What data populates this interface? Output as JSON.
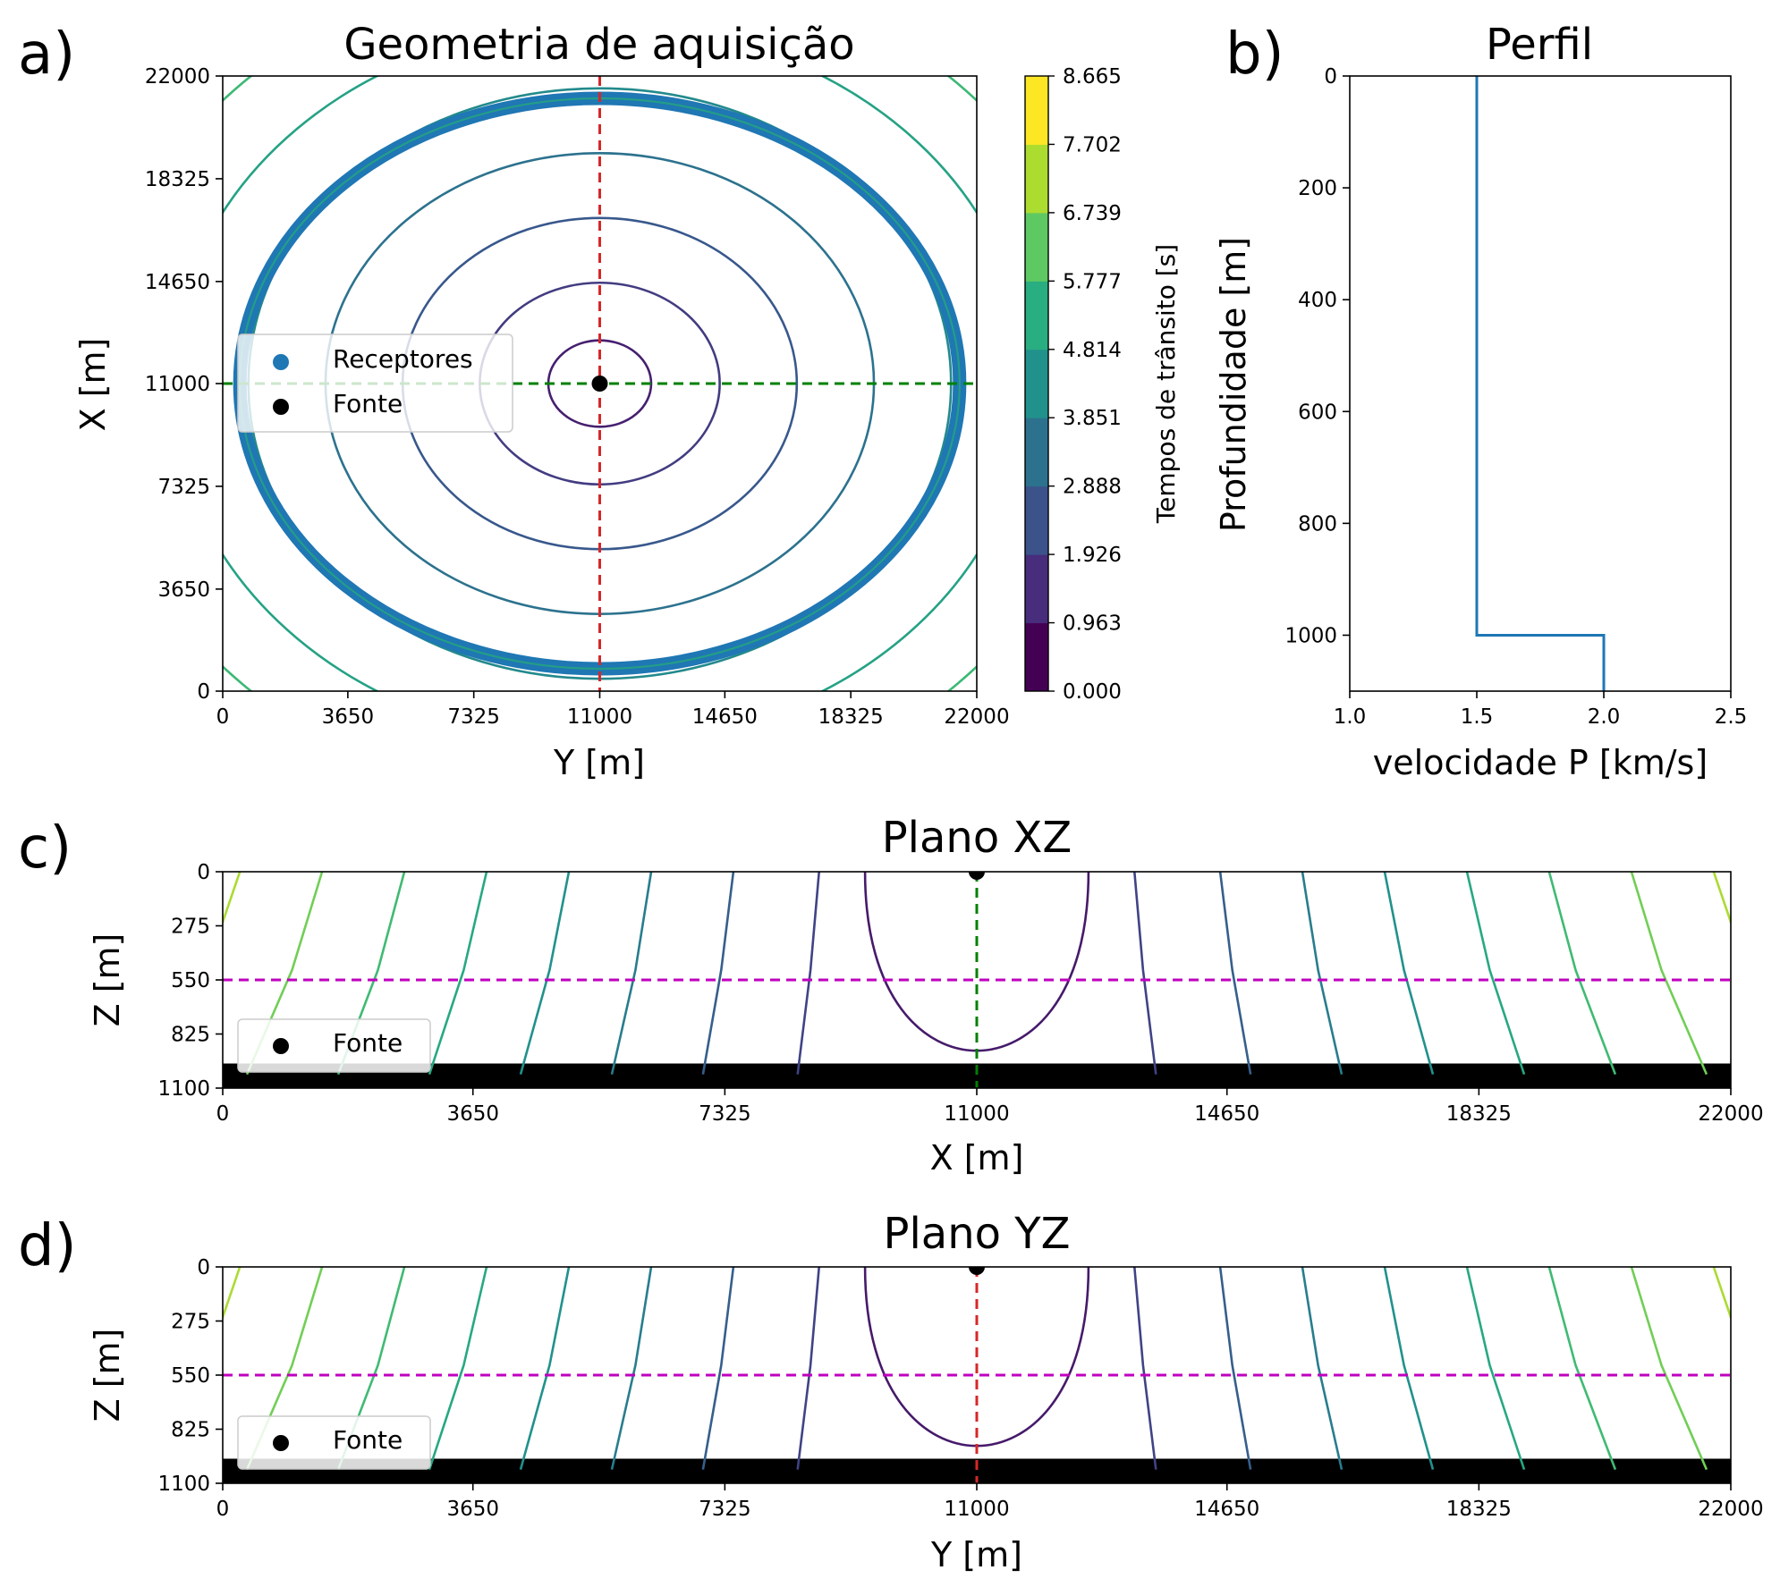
{
  "chart_data": [
    {
      "id": "a",
      "panel_label": "a)",
      "type": "contour",
      "title": "Geometria de aquisição",
      "xlabel": "Y [m]",
      "ylabel": "X [m]",
      "xlim": [
        0,
        22000
      ],
      "ylim": [
        0,
        22000
      ],
      "xticks": [
        "0",
        "3650",
        "7325",
        "11000",
        "14650",
        "18325",
        "22000"
      ],
      "yticks": [
        "0",
        "3650",
        "7325",
        "11000",
        "14650",
        "18325",
        "22000"
      ],
      "colorbar": {
        "label": "Tempos de trânsito [s]",
        "range": [
          0,
          8.665
        ],
        "ticks": [
          "0.000",
          "0.963",
          "1.926",
          "2.888",
          "3.851",
          "4.814",
          "5.777",
          "6.739",
          "7.702",
          "8.665"
        ],
        "colormap": [
          "#440154",
          "#472d7b",
          "#3b528b",
          "#2c728e",
          "#21918c",
          "#28ae80",
          "#5ec962",
          "#addc30",
          "#fde725"
        ]
      },
      "contour_levels_s": [
        0.963,
        1.926,
        2.888,
        3.851,
        4.814,
        5.777,
        6.739,
        7.702
      ],
      "source": {
        "name": "Fonte",
        "x": 11000,
        "y": 11000,
        "color": "#000000"
      },
      "receivers": {
        "name": "Receptores",
        "shape": "ellipse",
        "center": [
          11000,
          11000
        ],
        "radius_y": 10500,
        "radius_x": 10200,
        "color": "#1f77b4"
      },
      "guide_lines": [
        {
          "orientation": "vertical",
          "at_y": 11000,
          "color": "#d62728"
        },
        {
          "orientation": "horizontal",
          "at_x": 11000,
          "color": "#008000"
        }
      ],
      "legend": {
        "position": "center-left",
        "entries": [
          "Receptores",
          "Fonte"
        ]
      }
    },
    {
      "id": "b",
      "panel_label": "b)",
      "type": "line",
      "title": "Perfil",
      "xlabel": "velocidade P [km/s]",
      "ylabel": "Profundidade [m]",
      "xlim": [
        1.0,
        2.5
      ],
      "ylim": [
        1100,
        0
      ],
      "xticks": [
        "1.0",
        "1.5",
        "2.0",
        "2.5"
      ],
      "yticks": [
        "0",
        "200",
        "400",
        "600",
        "800",
        "1000"
      ],
      "series": [
        {
          "color": "#1f77b4",
          "points": [
            [
              1.5,
              0
            ],
            [
              1.5,
              1000
            ],
            [
              2.0,
              1000
            ],
            [
              2.0,
              1100
            ]
          ]
        }
      ]
    },
    {
      "id": "c",
      "panel_label": "c)",
      "type": "contour",
      "title": "Plano XZ",
      "xlabel": "X [m]",
      "ylabel": "Z [m]",
      "xlim": [
        0,
        22000
      ],
      "ylim": [
        1100,
        0
      ],
      "xticks": [
        "0",
        "3650",
        "7325",
        "11000",
        "14650",
        "18325",
        "22000"
      ],
      "yticks": [
        "0",
        "275",
        "550",
        "825",
        "1100"
      ],
      "source": {
        "name": "Fonte",
        "x": 11000,
        "z": 0
      },
      "reflector_depth_m": 1000,
      "reference_depth_m": 550,
      "guide_line_color": "#008000",
      "legend": {
        "position": "lower-left",
        "entries": [
          "Fonte"
        ]
      }
    },
    {
      "id": "d",
      "panel_label": "d)",
      "type": "contour",
      "title": "Plano YZ",
      "xlabel": "Y [m]",
      "ylabel": "Z [m]",
      "xlim": [
        0,
        22000
      ],
      "ylim": [
        1100,
        0
      ],
      "xticks": [
        "0",
        "3650",
        "7325",
        "11000",
        "14650",
        "18325",
        "22000"
      ],
      "yticks": [
        "0",
        "275",
        "550",
        "825",
        "1100"
      ],
      "source": {
        "name": "Fonte",
        "y": 11000,
        "z": 0
      },
      "reflector_depth_m": 1000,
      "reference_depth_m": 550,
      "guide_line_color": "#d62728",
      "legend": {
        "position": "lower-left",
        "entries": [
          "Fonte"
        ]
      }
    }
  ]
}
